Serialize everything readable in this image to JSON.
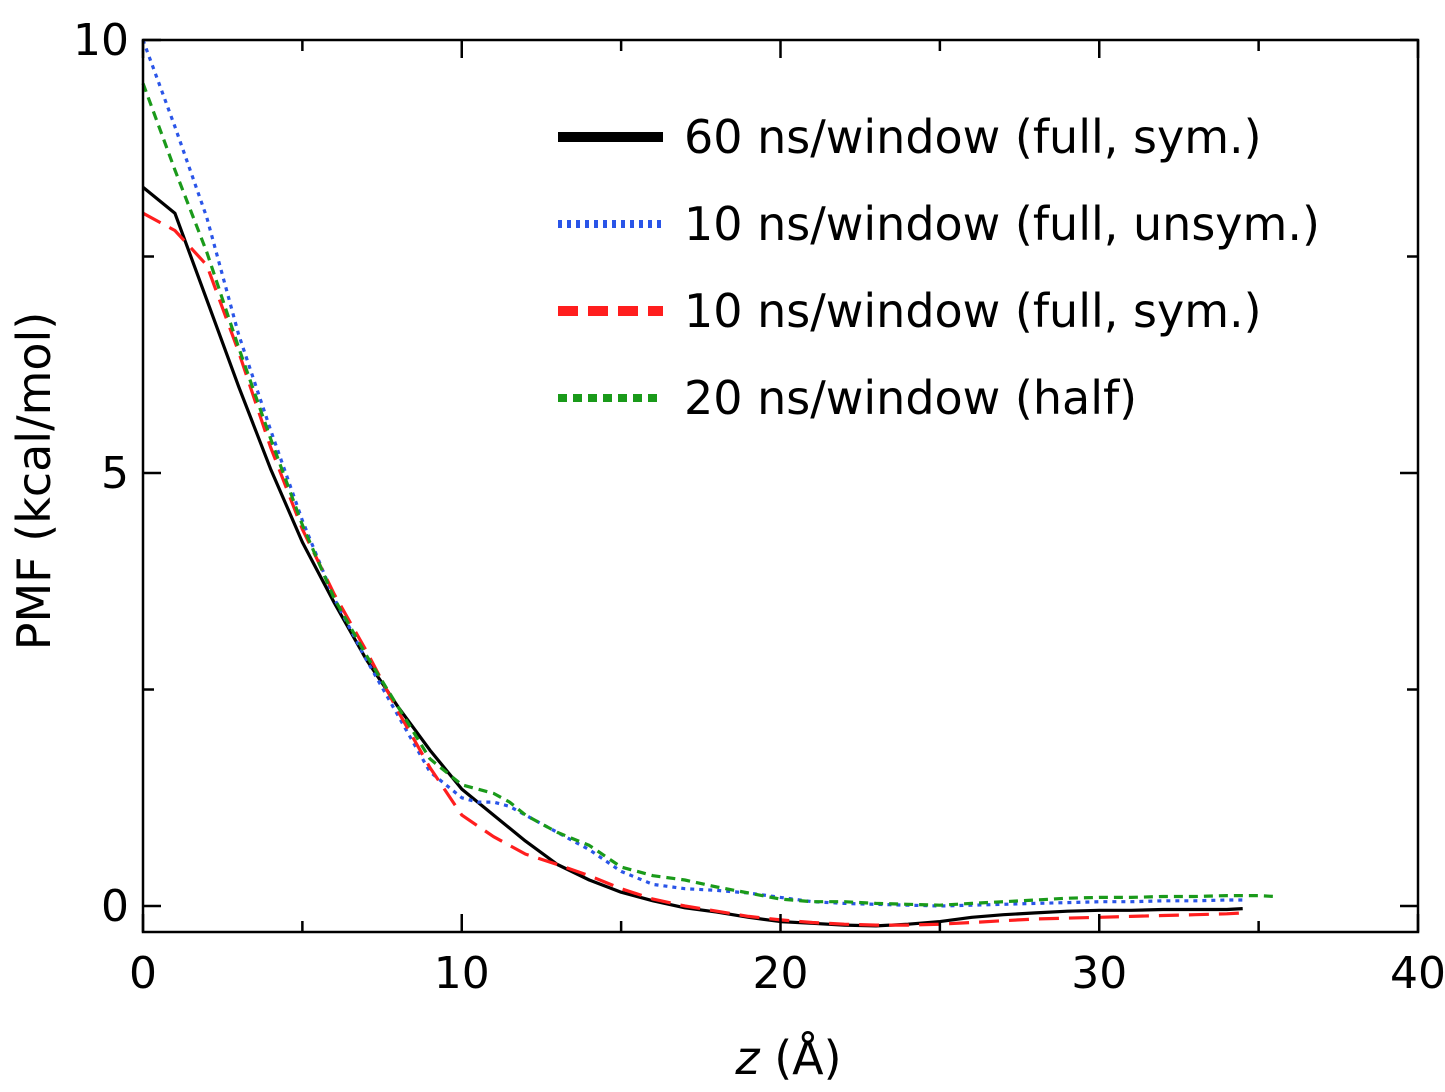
{
  "chart_data": {
    "type": "line",
    "xlabel_var": "z",
    "xlabel_unit": " (Å)",
    "ylabel": "PMF (kcal/mol)",
    "xlim": [
      0,
      40
    ],
    "ylim": [
      -0.3,
      10
    ],
    "xticks": [
      0,
      10,
      20,
      30,
      40
    ],
    "xtick_labels": [
      "0",
      "10",
      "20",
      "30",
      "40"
    ],
    "yticks": [
      0,
      5,
      10
    ],
    "ytick_labels": [
      "0",
      "5",
      "10"
    ],
    "yminor_ticks": [
      2.5,
      7.5
    ],
    "xminor_ticks": [
      5,
      15,
      25,
      35
    ],
    "grid": false,
    "legend_position": "top-right",
    "series": [
      {
        "name": "60 ns/window (full, sym.)",
        "color": "#000000",
        "style": "solid",
        "x": [
          0,
          1,
          2,
          3,
          4,
          5,
          6,
          7,
          8,
          9,
          10,
          11,
          12,
          13,
          14,
          15,
          16,
          17,
          18,
          19,
          20,
          21,
          22,
          23,
          24,
          25,
          26,
          27,
          28,
          29,
          30,
          31,
          32,
          33,
          34,
          34.5
        ],
        "y": [
          8.3,
          8.0,
          7.0,
          6.0,
          5.05,
          4.2,
          3.5,
          2.85,
          2.3,
          1.8,
          1.35,
          1.05,
          0.75,
          0.48,
          0.3,
          0.16,
          0.06,
          -0.02,
          -0.07,
          -0.13,
          -0.18,
          -0.2,
          -0.22,
          -0.23,
          -0.21,
          -0.18,
          -0.13,
          -0.1,
          -0.08,
          -0.06,
          -0.05,
          -0.05,
          -0.04,
          -0.04,
          -0.04,
          -0.03
        ]
      },
      {
        "name": "10 ns/window (full, unsym.)",
        "color": "#2a55e8",
        "style": "dotted",
        "x": [
          0,
          1,
          2,
          3,
          4,
          5,
          6,
          7,
          8,
          9,
          10,
          10.5,
          11,
          11.5,
          12,
          13,
          14,
          15,
          16,
          17,
          18,
          19,
          20,
          21,
          22,
          23,
          24,
          25,
          26,
          27,
          28,
          29,
          30,
          31,
          32,
          33,
          34,
          34.5
        ],
        "y": [
          10.0,
          9.0,
          7.95,
          6.6,
          5.5,
          4.45,
          3.55,
          2.85,
          2.2,
          1.55,
          1.25,
          1.2,
          1.2,
          1.15,
          1.05,
          0.85,
          0.65,
          0.4,
          0.25,
          0.2,
          0.18,
          0.15,
          0.1,
          0.05,
          0.03,
          0.02,
          0.01,
          0.0,
          0.01,
          0.02,
          0.03,
          0.04,
          0.05,
          0.05,
          0.06,
          0.06,
          0.07,
          0.07
        ]
      },
      {
        "name": "10 ns/window (full, sym.)",
        "color": "#ff1e1e",
        "style": "dashed",
        "x": [
          0,
          1,
          2,
          3,
          4,
          5,
          6,
          7,
          8,
          9,
          10,
          11,
          12,
          13,
          14,
          15,
          16,
          17,
          18,
          19,
          20,
          21,
          22,
          23,
          24,
          25,
          26,
          27,
          28,
          29,
          30,
          31,
          32,
          33,
          34,
          34.5
        ],
        "y": [
          8.0,
          7.8,
          7.4,
          6.4,
          5.3,
          4.35,
          3.6,
          2.95,
          2.25,
          1.6,
          1.05,
          0.8,
          0.6,
          0.48,
          0.35,
          0.2,
          0.08,
          0.0,
          -0.06,
          -0.12,
          -0.16,
          -0.19,
          -0.21,
          -0.22,
          -0.22,
          -0.21,
          -0.19,
          -0.17,
          -0.15,
          -0.14,
          -0.13,
          -0.12,
          -0.11,
          -0.1,
          -0.09,
          -0.08
        ]
      },
      {
        "name": "20 ns/window (half)",
        "color": "#1a9a1a",
        "style": "short-dashed",
        "x": [
          0,
          1,
          2,
          3,
          4,
          5,
          6,
          7,
          8,
          9,
          10,
          10.5,
          11,
          11.5,
          12,
          13,
          14,
          15,
          16,
          17,
          18,
          19,
          20,
          21,
          22,
          23,
          24,
          25,
          26,
          27,
          28,
          29,
          30,
          31,
          32,
          33,
          34,
          35,
          35.5
        ],
        "y": [
          9.5,
          8.5,
          7.55,
          6.45,
          5.4,
          4.4,
          3.55,
          2.9,
          2.3,
          1.7,
          1.4,
          1.35,
          1.3,
          1.2,
          1.05,
          0.85,
          0.7,
          0.45,
          0.35,
          0.3,
          0.22,
          0.15,
          0.08,
          0.05,
          0.05,
          0.03,
          0.02,
          0.01,
          0.03,
          0.05,
          0.07,
          0.09,
          0.1,
          0.1,
          0.11,
          0.11,
          0.12,
          0.12,
          0.11
        ]
      }
    ]
  }
}
